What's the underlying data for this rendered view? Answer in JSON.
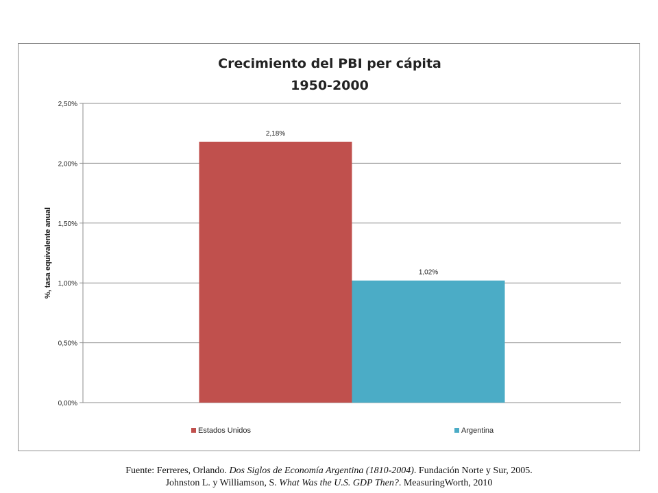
{
  "chart_data": {
    "type": "bar",
    "title": "Crecimiento del PBI per cápita",
    "subtitle": "1950-2000",
    "ylabel": "%, tasa equivalente anual",
    "xlabel": "",
    "ylim": [
      0,
      2.5
    ],
    "yticks": [
      "0,00%",
      "0,50%",
      "1,00%",
      "1,50%",
      "2,00%",
      "2,50%"
    ],
    "ytick_values": [
      0,
      0.5,
      1.0,
      1.5,
      2.0,
      2.5
    ],
    "grid": true,
    "legend_position": "bottom",
    "series": [
      {
        "name": "Estados Unidos",
        "value": 2.18,
        "label": "2,18%",
        "color": "#c0504d"
      },
      {
        "name": "Argentina",
        "value": 1.02,
        "label": "1,02%",
        "color": "#4bacc6"
      }
    ]
  },
  "source": {
    "line1_prefix": "Fuente: Ferreres, Orlando. ",
    "line1_italic": "Dos Siglos de Economía Argentina (1810-2004)",
    "line1_suffix": ". Fundación Norte y Sur, 2005.",
    "line2_prefix": "Johnston L. y Williamson,  S. ",
    "line2_italic": "What Was the U.S. GDP Then?",
    "line2_suffix": ". MeasuringWorth, 2010"
  }
}
